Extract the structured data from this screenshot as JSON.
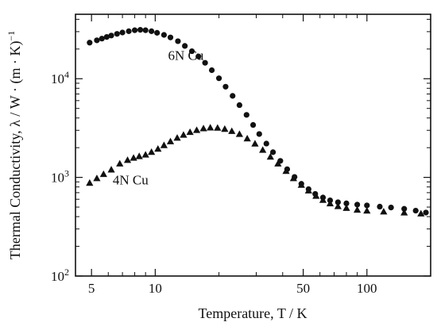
{
  "chart_data": {
    "type": "scatter",
    "title": "",
    "xlabel": "Temperature,  T / K",
    "ylabel": "Thermal Conductivity,  λ / W · (m · K)",
    "ylabel_superscript": "−1",
    "xscale": "log",
    "yscale": "log",
    "xlim": [
      4.2,
      200
    ],
    "ylim": [
      100,
      45000
    ],
    "x_ticks": [
      {
        "value": 5,
        "label": "5"
      },
      {
        "value": 10,
        "label": "10"
      },
      {
        "value": 50,
        "label": "50"
      },
      {
        "value": 100,
        "label": "100"
      }
    ],
    "y_ticks": [
      {
        "value": 100,
        "base": "10",
        "exp": "2"
      },
      {
        "value": 1000,
        "base": "10",
        "exp": "3"
      },
      {
        "value": 10000,
        "base": "10",
        "exp": "4"
      }
    ],
    "grid": false,
    "series": [
      {
        "name": "6N Cu",
        "marker": "circle",
        "points": [
          [
            4.9,
            23200
          ],
          [
            5.3,
            24500
          ],
          [
            5.6,
            25500
          ],
          [
            5.9,
            26500
          ],
          [
            6.2,
            27400
          ],
          [
            6.6,
            28500
          ],
          [
            7.0,
            29400
          ],
          [
            7.5,
            30300
          ],
          [
            8.0,
            31000
          ],
          [
            8.5,
            31300
          ],
          [
            9.0,
            31000
          ],
          [
            9.6,
            30300
          ],
          [
            10.2,
            29200
          ],
          [
            11.0,
            27800
          ],
          [
            11.8,
            26200
          ],
          [
            12.8,
            24000
          ],
          [
            13.8,
            21500
          ],
          [
            14.9,
            19000
          ],
          [
            16.0,
            16800
          ],
          [
            17.2,
            14500
          ],
          [
            18.5,
            12200
          ],
          [
            20.0,
            10100
          ],
          [
            21.5,
            8300
          ],
          [
            23.2,
            6700
          ],
          [
            25.0,
            5400
          ],
          [
            27.0,
            4300
          ],
          [
            29.0,
            3400
          ],
          [
            31.0,
            2750
          ],
          [
            33.5,
            2200
          ],
          [
            36.0,
            1800
          ],
          [
            39.0,
            1470
          ],
          [
            42.0,
            1210
          ],
          [
            45.5,
            1010
          ],
          [
            49.0,
            860
          ],
          [
            53.0,
            760
          ],
          [
            57.0,
            680
          ],
          [
            62.0,
            625
          ],
          [
            67.0,
            585
          ],
          [
            73.0,
            560
          ],
          [
            80.0,
            545
          ],
          [
            90.0,
            530
          ],
          [
            100.0,
            520
          ],
          [
            115.0,
            505
          ],
          [
            130.0,
            495
          ],
          [
            150.0,
            480
          ],
          [
            170.0,
            460
          ],
          [
            190.0,
            440
          ]
        ]
      },
      {
        "name": "4N Cu",
        "marker": "triangle",
        "points": [
          [
            4.9,
            880
          ],
          [
            5.3,
            980
          ],
          [
            5.7,
            1080
          ],
          [
            6.2,
            1200
          ],
          [
            6.8,
            1380
          ],
          [
            7.4,
            1500
          ],
          [
            7.9,
            1580
          ],
          [
            8.4,
            1640
          ],
          [
            9.0,
            1700
          ],
          [
            9.6,
            1810
          ],
          [
            10.3,
            1950
          ],
          [
            11.0,
            2120
          ],
          [
            11.8,
            2320
          ],
          [
            12.7,
            2520
          ],
          [
            13.6,
            2700
          ],
          [
            14.6,
            2880
          ],
          [
            15.7,
            3020
          ],
          [
            16.9,
            3140
          ],
          [
            18.2,
            3200
          ],
          [
            19.7,
            3180
          ],
          [
            21.3,
            3100
          ],
          [
            23.0,
            2950
          ],
          [
            25.0,
            2750
          ],
          [
            27.2,
            2480
          ],
          [
            29.6,
            2200
          ],
          [
            32.2,
            1900
          ],
          [
            35.0,
            1620
          ],
          [
            38.0,
            1380
          ],
          [
            41.5,
            1160
          ],
          [
            45.0,
            980
          ],
          [
            49.0,
            840
          ],
          [
            53.0,
            735
          ],
          [
            57.5,
            650
          ],
          [
            62.0,
            590
          ],
          [
            67.0,
            545
          ],
          [
            73.0,
            510
          ],
          [
            80.0,
            490
          ],
          [
            90.0,
            470
          ],
          [
            100.0,
            460
          ],
          [
            120.0,
            450
          ],
          [
            150.0,
            440
          ],
          [
            180.0,
            430
          ]
        ]
      }
    ],
    "annotations": [
      {
        "text": "6N Cu",
        "x": 11.5,
        "y": 15500
      },
      {
        "text": "4N Cu",
        "x": 6.3,
        "y": 850
      }
    ]
  }
}
